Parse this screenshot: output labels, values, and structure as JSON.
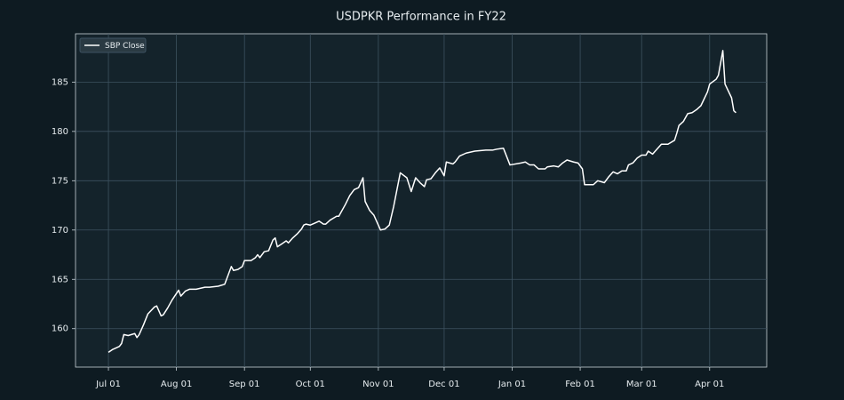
{
  "chart_data": {
    "type": "line",
    "title": "USDPKR Performance in FY22",
    "x": [
      "Jul 01",
      "Jul 03",
      "Jul 06",
      "Jul 07",
      "Jul 08",
      "Jul 10",
      "Jul 13",
      "Jul 14",
      "Jul 15",
      "Jul 17",
      "Jul 19",
      "Jul 22",
      "Jul 23",
      "Jul 25",
      "Jul 26",
      "Jul 28",
      "Jul 30",
      "Aug 02",
      "Aug 03",
      "Aug 05",
      "Aug 07",
      "Aug 10",
      "Aug 14",
      "Aug 16",
      "Aug 20",
      "Aug 23",
      "Aug 24",
      "Aug 26",
      "Aug 27",
      "Aug 29",
      "Aug 31",
      "Sep 01",
      "Sep 04",
      "Sep 06",
      "Sep 07",
      "Sep 08",
      "Sep 10",
      "Sep 12",
      "Sep 14",
      "Sep 15",
      "Sep 16",
      "Sep 18",
      "Sep 20",
      "Sep 21",
      "Sep 23",
      "Sep 25",
      "Sep 27",
      "Sep 28",
      "Sep 29",
      "Oct 01",
      "Oct 03",
      "Oct 05",
      "Oct 07",
      "Oct 08",
      "Oct 10",
      "Oct 13",
      "Oct 14",
      "Oct 17",
      "Oct 19",
      "Oct 21",
      "Oct 23",
      "Oct 24",
      "Oct 25",
      "Oct 26",
      "Oct 28",
      "Oct 30",
      "Nov 02",
      "Nov 04",
      "Nov 06",
      "Nov 08",
      "Nov 11",
      "Nov 14",
      "Nov 16",
      "Nov 18",
      "Nov 20",
      "Nov 22",
      "Nov 23",
      "Nov 25",
      "Nov 27",
      "Nov 29",
      "Dec 01",
      "Dec 02",
      "Dec 05",
      "Dec 06",
      "Dec 08",
      "Dec 11",
      "Dec 15",
      "Dec 20",
      "Dec 23",
      "Dec 25",
      "Dec 28",
      "Dec 31",
      "Jan 05",
      "Jan 07",
      "Jan 09",
      "Jan 11",
      "Jan 13",
      "Jan 16",
      "Jan 17",
      "Jan 20",
      "Jan 22",
      "Jan 24",
      "Jan 26",
      "Jan 29",
      "Jan 31",
      "Feb 02",
      "Feb 03",
      "Feb 07",
      "Feb 09",
      "Feb 12",
      "Feb 14",
      "Feb 16",
      "Feb 18",
      "Feb 20",
      "Feb 22",
      "Feb 23",
      "Feb 25",
      "Feb 27",
      "Mar 01",
      "Mar 03",
      "Mar 04",
      "Mar 06",
      "Mar 08",
      "Mar 10",
      "Mar 13",
      "Mar 16",
      "Mar 17",
      "Mar 18",
      "Mar 20",
      "Mar 22",
      "Mar 24",
      "Mar 26",
      "Mar 28",
      "Mar 31",
      "Apr 01",
      "Apr 04",
      "Apr 05",
      "Apr 07",
      "Apr 08",
      "Apr 11",
      "Apr 12",
      "Apr 13"
    ],
    "series": [
      {
        "name": "SBP Close",
        "color": "#ffffff",
        "values": [
          157.6,
          157.9,
          158.2,
          158.5,
          159.4,
          159.3,
          159.5,
          159.1,
          159.4,
          160.4,
          161.5,
          162.2,
          162.3,
          161.3,
          161.4,
          162.1,
          162.9,
          163.9,
          163.3,
          163.8,
          164.0,
          164.0,
          164.2,
          164.2,
          164.3,
          164.5,
          165.1,
          166.3,
          165.9,
          166.0,
          166.3,
          166.9,
          166.9,
          167.2,
          167.5,
          167.2,
          167.8,
          167.9,
          169.0,
          169.2,
          168.3,
          168.6,
          168.9,
          168.7,
          169.2,
          169.6,
          170.1,
          170.5,
          170.6,
          170.5,
          170.7,
          170.9,
          170.6,
          170.6,
          171.0,
          171.4,
          171.4,
          172.6,
          173.5,
          174.1,
          174.3,
          174.8,
          175.3,
          172.9,
          172.0,
          171.5,
          170.0,
          170.1,
          170.5,
          172.4,
          175.8,
          175.3,
          173.9,
          175.3,
          174.8,
          174.4,
          175.1,
          175.2,
          175.8,
          176.3,
          175.5,
          176.9,
          176.7,
          176.9,
          177.5,
          177.8,
          178.0,
          178.1,
          178.1,
          178.2,
          178.3,
          176.6,
          176.8,
          176.9,
          176.6,
          176.6,
          176.2,
          176.2,
          176.4,
          176.5,
          176.4,
          176.8,
          177.1,
          176.9,
          176.8,
          176.2,
          174.6,
          174.6,
          175.0,
          174.8,
          175.4,
          175.9,
          175.7,
          176.0,
          176.0,
          176.6,
          176.8,
          177.3,
          177.6,
          177.6,
          178.0,
          177.7,
          178.2,
          178.7,
          178.7,
          179.1,
          179.8,
          180.6,
          181.0,
          181.8,
          181.9,
          182.2,
          182.6,
          184.0,
          184.8,
          185.3,
          185.7,
          188.2,
          184.8,
          183.4,
          182.1,
          181.9
        ]
      }
    ],
    "xlim": [
      "Jun 16",
      "Apr 27"
    ],
    "xticks": [
      "Jul 01",
      "Aug 01",
      "Sep 01",
      "Oct 01",
      "Nov 01",
      "Dec 01",
      "Jan 01",
      "Feb 01",
      "Mar 01",
      "Apr 01"
    ],
    "ylim": [
      156.1,
      189.9
    ],
    "yticks": [
      160,
      165,
      170,
      175,
      180,
      185
    ],
    "grid": true,
    "legend": "upper left"
  }
}
